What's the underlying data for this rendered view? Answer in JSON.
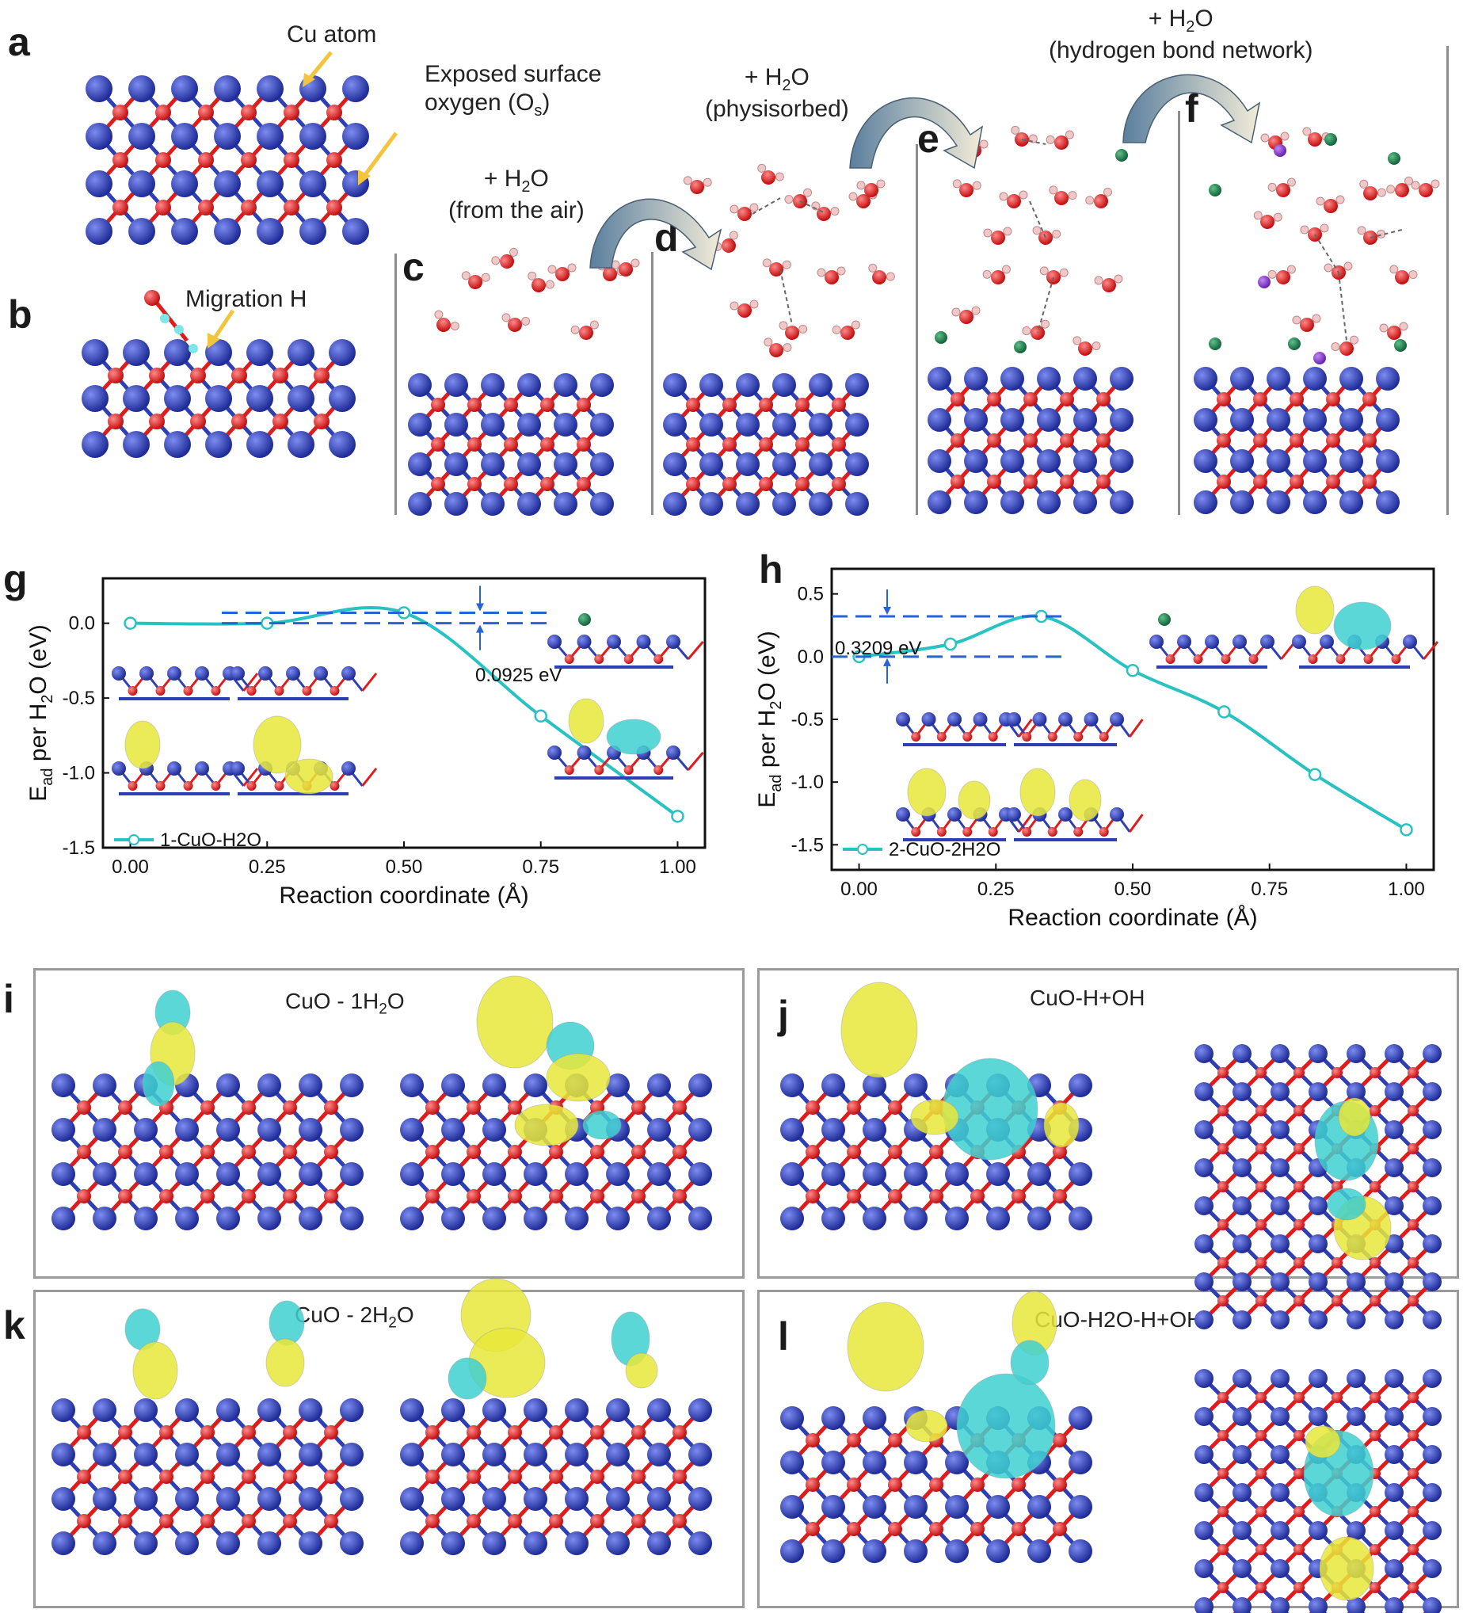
{
  "panel_labels": {
    "a": "a",
    "b": "b",
    "c": "c",
    "d": "d",
    "e": "e",
    "f": "f",
    "g": "g",
    "h": "h",
    "i": "i",
    "j": "j",
    "k": "k",
    "l": "l"
  },
  "annotations": {
    "cu_atom": "Cu atom",
    "exposed_oxygen_line1": "Exposed surface",
    "exposed_oxygen_line2": "oxygen (O",
    "exposed_oxygen_sub": "s",
    "exposed_oxygen_end": ")",
    "migration_h": "Migration H",
    "water_air_line1_pre": "+ H",
    "water_air_line1_sub": "2",
    "water_air_line1_post": "O",
    "water_air_line2": "(from the air)",
    "water_phys_line1_pre": "+ H",
    "water_phys_line1_sub": "2",
    "water_phys_line1_post": "O",
    "water_phys_line2": "(physisorbed)",
    "water_hb_line1_pre": "+ H",
    "water_hb_line1_sub": "2",
    "water_hb_line1_post": "O",
    "water_hb_line2": "(hydrogen bond network)"
  },
  "box_titles": {
    "i_pre": "CuO - 1H",
    "i_sub": "2",
    "i_post": "O",
    "j": "CuO-H+OH",
    "k_pre": "CuO - 2H",
    "k_sub": "2",
    "k_post": "O",
    "l": "CuO-H2O-H+OH"
  },
  "colors": {
    "cu": "#2e3fb5",
    "o": "#e01b1b",
    "h": "#f2c7c7",
    "line": "#28c2c2",
    "yellow": "#e8e83a",
    "cyan": "#3fd0d0",
    "barrier": "#2563d6"
  },
  "chart_data": [
    {
      "type": "line",
      "panel": "g",
      "ylabel_pre": "E",
      "ylabel_sub": "ad",
      "ylabel_mid": " per H",
      "ylabel_sub2": "2",
      "ylabel_post": "O (eV)",
      "xlabel": "Reaction coordinate (Å)",
      "xlim": [
        -0.05,
        1.05
      ],
      "ylim": [
        -1.5,
        0.3
      ],
      "xticks": [
        "0.00",
        "0.25",
        "0.50",
        "0.75",
        "1.00"
      ],
      "yticks": [
        "0.0",
        "-0.5",
        "-1.0",
        "-1.5"
      ],
      "barrier_label": "0.0925 eV",
      "legend": "1-CuO-H2O",
      "x": [
        0.0,
        0.25,
        0.5,
        0.75,
        1.0
      ],
      "y": [
        0.0,
        0.0,
        0.07,
        -0.62,
        -1.29
      ],
      "series": [
        {
          "name": "1-CuO-H2O",
          "x": [
            0.0,
            0.25,
            0.5,
            0.75,
            1.0
          ],
          "y": [
            0.0,
            0.0,
            0.07,
            -0.62,
            -1.29
          ]
        }
      ]
    },
    {
      "type": "line",
      "panel": "h",
      "ylabel_pre": "E",
      "ylabel_sub": "ad",
      "ylabel_mid": " per H",
      "ylabel_sub2": "2",
      "ylabel_post": "O (eV)",
      "xlabel": "Reaction coordinate (Å)",
      "xlim": [
        -0.05,
        1.05
      ],
      "ylim": [
        -1.7,
        0.7
      ],
      "xticks": [
        "0.00",
        "0.25",
        "0.50",
        "0.75",
        "1.00"
      ],
      "yticks": [
        "0.5",
        "0.0",
        "-0.5",
        "-1.0",
        "-1.5"
      ],
      "barrier_label": "0.3209 eV",
      "legend": "2-CuO-2H2O",
      "x": [
        0.0,
        0.167,
        0.333,
        0.5,
        0.667,
        0.833,
        1.0
      ],
      "y": [
        0.0,
        0.1,
        0.3209,
        -0.11,
        -0.44,
        -0.94,
        -1.38
      ],
      "series": [
        {
          "name": "2-CuO-2H2O",
          "x": [
            0.0,
            0.167,
            0.333,
            0.5,
            0.667,
            0.833,
            1.0
          ],
          "y": [
            0.0,
            0.1,
            0.3209,
            -0.11,
            -0.44,
            -0.94,
            -1.38
          ]
        }
      ]
    }
  ]
}
